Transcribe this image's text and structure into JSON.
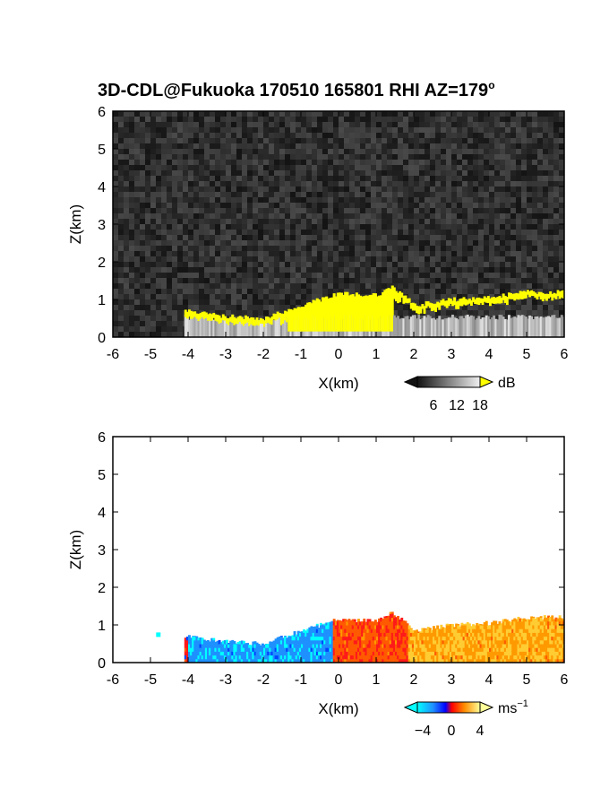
{
  "title": {
    "main": "3D-CDL@Fukuoka 170510 165801 RHI AZ=179",
    "degree": "o"
  },
  "colors": {
    "yellow": "#ffff00",
    "noise_dark": "#222222",
    "velocity_scale": [
      "#00ffff",
      "#1e90ff",
      "#0000ff",
      "#ff0000",
      "#ff8c00",
      "#ffd700",
      "#ffff99"
    ]
  },
  "chart_data": [
    {
      "type": "heatmap",
      "name": "reflectivity-rhi",
      "xlabel": "X(km)",
      "ylabel": "Z(km)",
      "xlim": [
        -6,
        6
      ],
      "ylim": [
        0,
        6
      ],
      "x_ticks": [
        -6,
        -5,
        -4,
        -3,
        -2,
        -1,
        0,
        1,
        2,
        3,
        4,
        5,
        6
      ],
      "y_ticks": [
        0,
        1,
        2,
        3,
        4,
        5,
        6
      ],
      "x_tick_labels": [
        "-6",
        "-5",
        "-4",
        "-3",
        "-2",
        "-1",
        "0",
        "1",
        "2",
        "3",
        "4",
        "5",
        "6"
      ],
      "y_tick_labels": [
        "0",
        "1",
        "2",
        "3",
        "4",
        "5",
        "6"
      ],
      "colorbar": {
        "unit": "dB",
        "ticks": [
          "6",
          "12",
          "18"
        ],
        "colormap": "grayscale, yellow above max"
      },
      "echo_top_profile": [
        {
          "x": -4.1,
          "top": 0.7
        },
        {
          "x": -3,
          "top": 0.55
        },
        {
          "x": -2,
          "top": 0.5
        },
        {
          "x": -1,
          "top": 0.85
        },
        {
          "x": 0,
          "top": 1.15
        },
        {
          "x": 1,
          "top": 1.1
        },
        {
          "x": 1.4,
          "top": 1.35
        },
        {
          "x": 2,
          "top": 0.85
        },
        {
          "x": 3,
          "top": 1.0
        },
        {
          "x": 4,
          "top": 1.05
        },
        {
          "x": 5,
          "top": 1.2
        },
        {
          "x": 6,
          "top": 1.2
        }
      ]
    },
    {
      "type": "heatmap",
      "name": "doppler-velocity-rhi",
      "xlabel": "X(km)",
      "ylabel": "Z(km)",
      "xlim": [
        -6,
        6
      ],
      "ylim": [
        0,
        6
      ],
      "x_ticks": [
        -6,
        -5,
        -4,
        -3,
        -2,
        -1,
        0,
        1,
        2,
        3,
        4,
        5,
        6
      ],
      "y_ticks": [
        0,
        1,
        2,
        3,
        4,
        5,
        6
      ],
      "x_tick_labels": [
        "-6",
        "-5",
        "-4",
        "-3",
        "-2",
        "-1",
        "0",
        "1",
        "2",
        "3",
        "4",
        "5",
        "6"
      ],
      "y_tick_labels": [
        "0",
        "1",
        "2",
        "3",
        "4",
        "5",
        "6"
      ],
      "colorbar": {
        "unit": "ms",
        "unit_exponent": "−1",
        "ticks": [
          "−4",
          "0",
          "4"
        ],
        "colormap": "cyan-blue-red-orange-yellow"
      },
      "velocity_regions": [
        {
          "x_range": [
            -4,
            -0.2
          ],
          "velocity": -3
        },
        {
          "x_range": [
            -0.2,
            1.8
          ],
          "velocity": 1
        },
        {
          "x_range": [
            1.8,
            6
          ],
          "velocity": 3
        }
      ]
    }
  ]
}
